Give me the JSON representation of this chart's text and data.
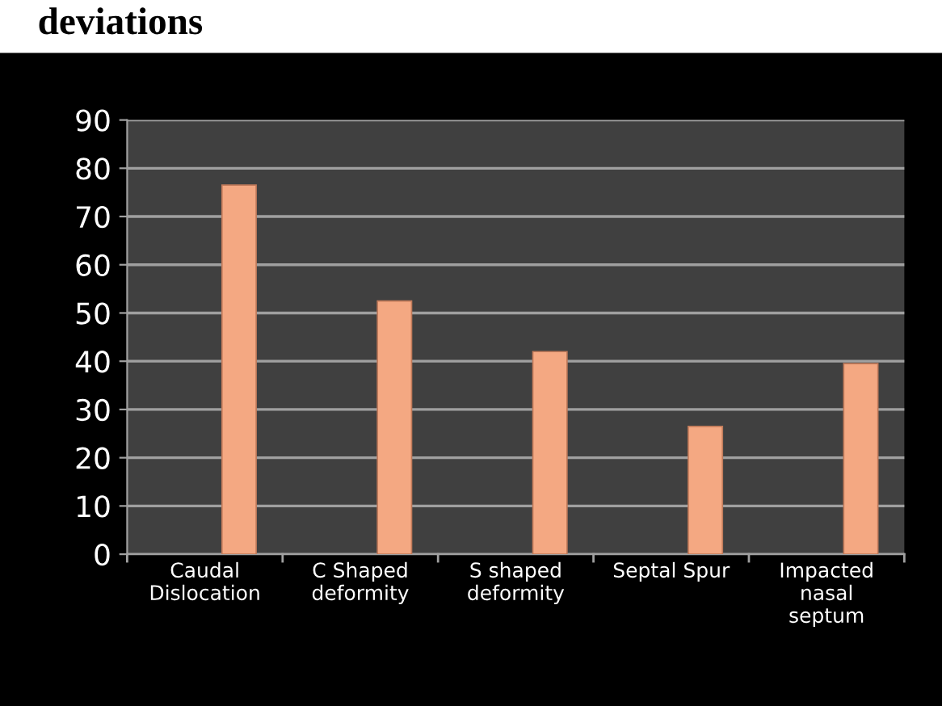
{
  "chart_data": {
    "type": "bar",
    "title": "deviations",
    "categories": [
      "Caudal\nDislocation",
      "C Shaped\ndeformity",
      "S shaped\ndeformity",
      "Septal Spur",
      "Impacted\nnasal\nseptum"
    ],
    "values": [
      76.5,
      52.5,
      42,
      26.5,
      39.5
    ],
    "color": "#f4a882",
    "ylim": [
      0,
      90
    ],
    "yticks": [
      0,
      10,
      20,
      30,
      40,
      50,
      60,
      70,
      80,
      90
    ],
    "grid": "y"
  }
}
